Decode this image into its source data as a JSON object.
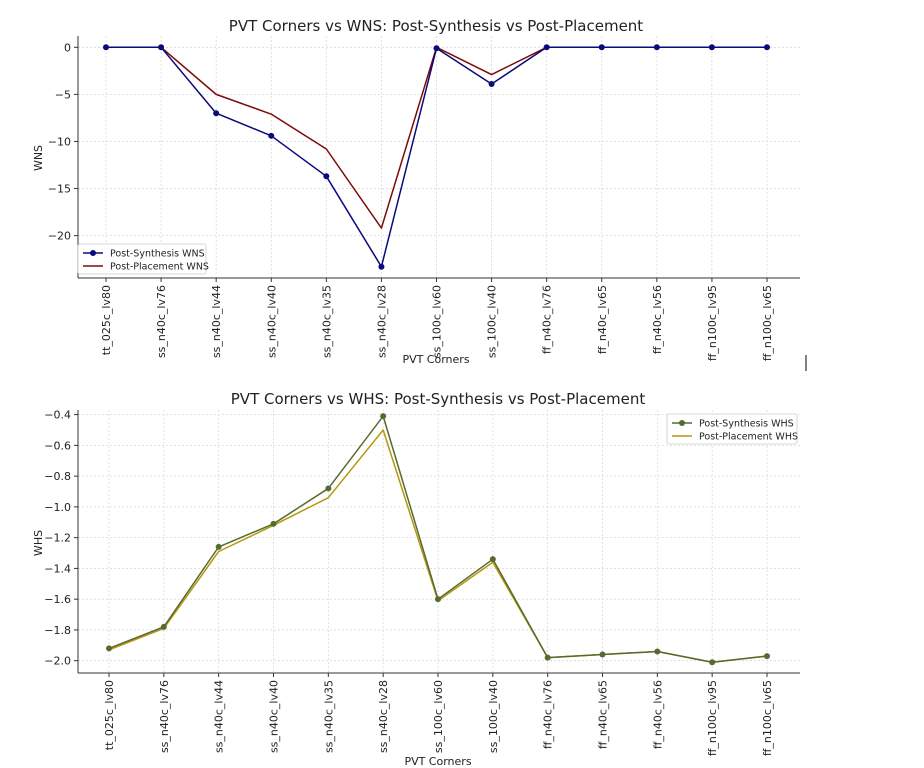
{
  "chart_data": [
    {
      "type": "line",
      "title": "PVT Corners vs WNS: Post-Synthesis vs Post-Placement",
      "xlabel": "PVT Corners",
      "ylabel": "WNS",
      "ylim": [
        -24.5,
        1.2
      ],
      "yticks": [
        0,
        -5,
        -10,
        -15,
        -20
      ],
      "ytick_labels": [
        "0",
        "−5",
        "−10",
        "−15",
        "−20"
      ],
      "grid": true,
      "legend_position": "lower-left",
      "categories": [
        "tt_025c_lv80",
        "ss_n40c_lv76",
        "ss_n40c_lv44",
        "ss_n40c_lv40",
        "ss_n40c_lv35",
        "ss_n40c_lv28",
        "ss_100c_lv60",
        "ss_100c_lv40",
        "ff_n40c_lv76",
        "ff_n40c_lv65",
        "ff_n40c_lv56",
        "ff_n100c_lv95",
        "ff_n100c_lv65"
      ],
      "series": [
        {
          "name": "Post-Synthesis WNS",
          "color": "#0a0a7a",
          "marker": true,
          "values": [
            0,
            0,
            -7.0,
            -9.4,
            -13.7,
            -23.3,
            -0.1,
            -3.9,
            0,
            0,
            0,
            0,
            0
          ]
        },
        {
          "name": "Post-Placement WNS",
          "color": "#7d0a0a",
          "marker": false,
          "values": [
            0,
            0,
            -5.0,
            -7.1,
            -10.8,
            -19.2,
            0,
            -2.9,
            0,
            0,
            0,
            0,
            0
          ]
        }
      ]
    },
    {
      "type": "line",
      "title": "PVT Corners vs WHS: Post-Synthesis vs Post-Placement",
      "xlabel": "PVT Corners",
      "ylabel": "WHS",
      "ylim": [
        -2.08,
        -0.37
      ],
      "yticks": [
        -0.4,
        -0.6,
        -0.8,
        -1.0,
        -1.2,
        -1.4,
        -1.6,
        -1.8,
        -2.0
      ],
      "ytick_labels": [
        "−0.4",
        "−0.6",
        "−0.8",
        "−1.0",
        "−1.2",
        "−1.4",
        "−1.6",
        "−1.8",
        "−2.0"
      ],
      "grid": true,
      "legend_position": "upper-right",
      "categories": [
        "tt_025c_lv80",
        "ss_n40c_lv76",
        "ss_n40c_lv44",
        "ss_n40c_lv40",
        "ss_n40c_lv35",
        "ss_n40c_lv28",
        "ss_100c_lv60",
        "ss_100c_lv40",
        "ff_n40c_lv76",
        "ff_n40c_lv65",
        "ff_n40c_lv56",
        "ff_n100c_lv95",
        "ff_n100c_lv65"
      ],
      "series": [
        {
          "name": "Post-Synthesis WHS",
          "color": "#556b2f",
          "marker": true,
          "values": [
            -1.92,
            -1.78,
            -1.26,
            -1.11,
            -0.88,
            -0.41,
            -1.6,
            -1.34,
            -1.98,
            -1.96,
            -1.94,
            -2.01,
            -1.97
          ]
        },
        {
          "name": "Post-Placement WHS",
          "color": "#b8960b",
          "marker": false,
          "values": [
            -1.93,
            -1.79,
            -1.29,
            -1.12,
            -0.94,
            -0.5,
            -1.61,
            -1.36,
            -1.98,
            -1.96,
            -1.94,
            -2.01,
            -1.97
          ]
        }
      ]
    }
  ]
}
